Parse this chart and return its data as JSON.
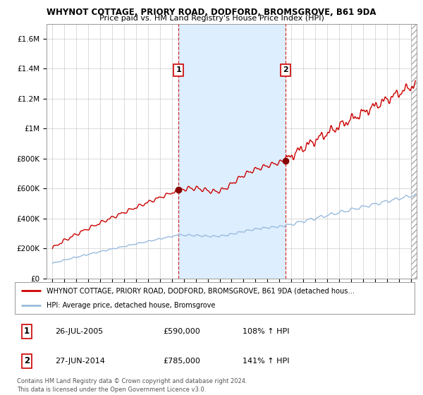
{
  "title": "WHYNOT COTTAGE, PRIORY ROAD, DODFORD, BROMSGROVE, B61 9DA",
  "subtitle": "Price paid vs. HM Land Registry's House Price Index (HPI)",
  "ytick_labels": [
    "£0",
    "£200K",
    "£400K",
    "£600K",
    "£800K",
    "£1M",
    "£1.2M",
    "£1.4M",
    "£1.6M"
  ],
  "ytick_values": [
    0,
    200000,
    400000,
    600000,
    800000,
    1000000,
    1200000,
    1400000,
    1600000
  ],
  "ylim": [
    0,
    1700000
  ],
  "xstart": 1994.5,
  "xend": 2025.5,
  "sale1_year": 2005.57,
  "sale1_price": 590000,
  "sale2_year": 2014.49,
  "sale2_price": 785000,
  "red_color": "#cc0000",
  "blue_color": "#99bbdd",
  "shade_color": "#ddeeff",
  "legend_line1": "WHYNOT COTTAGE, PRIORY ROAD, DODFORD, BROMSGROVE, B61 9DA (detached hous…",
  "legend_line2": "HPI: Average price, detached house, Bromsgrove",
  "table_row1_num": "1",
  "table_row1_date": "26-JUL-2005",
  "table_row1_price": "£590,000",
  "table_row1_hpi": "108% ↑ HPI",
  "table_row2_num": "2",
  "table_row2_date": "27-JUN-2014",
  "table_row2_price": "£785,000",
  "table_row2_hpi": "141% ↑ HPI",
  "footer1": "Contains HM Land Registry data © Crown copyright and database right 2024.",
  "footer2": "This data is licensed under the Open Government Licence v3.0."
}
